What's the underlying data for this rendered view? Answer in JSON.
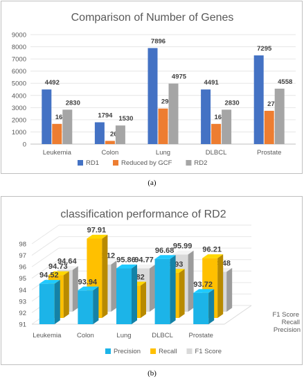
{
  "chart_data": [
    {
      "type": "bar",
      "title": "Comparison of Number of Genes",
      "categories": [
        "Leukemia",
        "Colon",
        "Lung",
        "DLBCL",
        "Prostate"
      ],
      "series": [
        {
          "name": "RD1",
          "values": [
            4492,
            1794,
            7896,
            4491,
            7295
          ],
          "color": "#4472c4"
        },
        {
          "name": "Reduced by GCF",
          "values": [
            1662,
            264,
            2921,
            1661,
            2737
          ],
          "color": "#ed7d31"
        },
        {
          "name": "RD2",
          "values": [
            2830,
            1530,
            4975,
            2830,
            4558
          ],
          "color": "#a5a5a5"
        }
      ],
      "ylim": [
        0,
        9000
      ],
      "yticks": [
        "0",
        "1000",
        "2000",
        "3000",
        "4000",
        "5000",
        "6000",
        "7000",
        "8000",
        "9000"
      ],
      "grid": true,
      "legend": "bottom",
      "caption": "(a)"
    },
    {
      "type": "bar",
      "title": "classification performance of RD2",
      "categories": [
        "Leukemia",
        "Colon",
        "Lung",
        "DLBCL",
        "Prostate"
      ],
      "series": [
        {
          "name": "Precision",
          "values": [
            94.52,
            93.94,
            95.86,
            96.68,
            93.72
          ],
          "color": "#1cb4e8"
        },
        {
          "name": "Recall",
          "values": [
            94.73,
            97.91,
            93.82,
            94.93,
            96.21
          ],
          "color": "#ffc000"
        },
        {
          "name": "F1 Score",
          "values": [
            94.64,
            95.12,
            94.77,
            95.99,
            94.48
          ],
          "color": "#d9d9d9"
        }
      ],
      "depth_labels": [
        "F1 Score",
        "Recall",
        "Precision"
      ],
      "ylim": [
        91,
        98
      ],
      "yticks": [
        "91",
        "92",
        "93",
        "94",
        "95",
        "96",
        "97",
        "98"
      ],
      "grid": true,
      "legend": "bottom",
      "caption": "(b)"
    }
  ]
}
